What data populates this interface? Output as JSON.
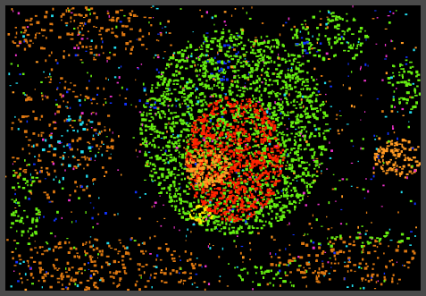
{
  "image": {
    "description_kind": "classified-raster-map",
    "background_color": "#000000",
    "frame_color": "#4a4a4a",
    "palette": {
      "green": "#66ee11",
      "red": "#ff2200",
      "orange": "#ff9922",
      "yellow": "#ffee00",
      "cyan": "#22ddee",
      "blue": "#1133ff",
      "magenta": "#ee33cc",
      "dark_orange": "#dd7711"
    }
  }
}
